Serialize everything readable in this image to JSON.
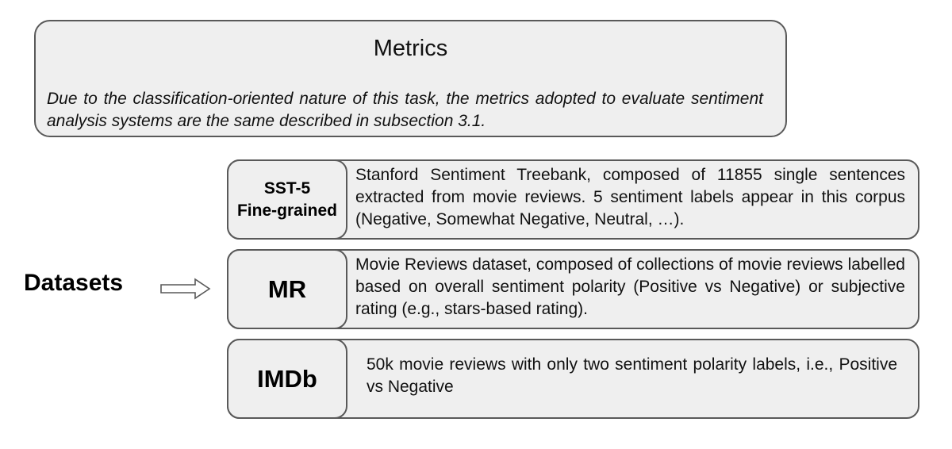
{
  "metrics": {
    "title": "Metrics",
    "text": "Due to the classification-oriented nature of this task, the metrics adopted to evaluate sentiment analysis systems are the same described in subsection 3.1."
  },
  "datasets": {
    "label": "Datasets",
    "arrow_icon": "arrow-right-outline-icon",
    "items": [
      {
        "key_line1": "SST-5",
        "key_line2": "Fine-grained",
        "description": "Stanford Sentiment Treebank, composed of 11855 single sentences extracted from movie reviews. 5 sentiment labels appear in this corpus (Negative, Somewhat Negative, Neutral, …)."
      },
      {
        "key": "MR",
        "description": "Movie Reviews dataset, composed of collections of movie reviews labelled based on overall sentiment polarity (Positive vs Negative) or subjective rating (e.g., stars-based rating)."
      },
      {
        "key": "IMDb",
        "description": "50k movie reviews with only two sentiment polarity labels, i.e., Positive vs Negative"
      }
    ]
  },
  "colors": {
    "box_fill": "#efefef",
    "box_border": "#595959",
    "text": "#111111"
  }
}
